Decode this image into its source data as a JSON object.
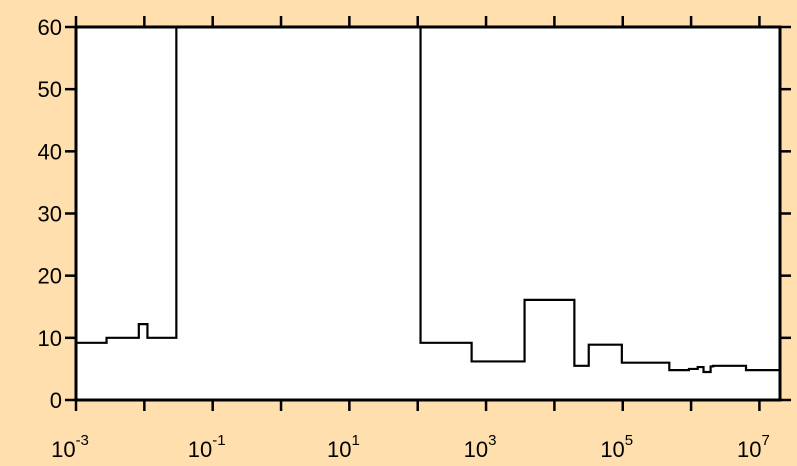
{
  "chart_data": {
    "type": "line",
    "title": "",
    "xlabel": "",
    "ylabel": "",
    "xscale": "log",
    "xlim": [
      0.001,
      20000000
    ],
    "ylim": [
      0,
      60
    ],
    "grid": false,
    "step": true,
    "x_ticks": [
      {
        "base": "10",
        "exp": "-3",
        "value": 0.001
      },
      {
        "base": "10",
        "exp": "-1",
        "value": 0.1
      },
      {
        "base": "10",
        "exp": "1",
        "value": 10
      },
      {
        "base": "10",
        "exp": "3",
        "value": 1000
      },
      {
        "base": "10",
        "exp": "5",
        "value": 100000
      },
      {
        "base": "10",
        "exp": "7",
        "value": 10000000
      }
    ],
    "y_ticks": [
      "0",
      "10",
      "20",
      "30",
      "40",
      "50",
      "60"
    ],
    "series": [
      {
        "color": "#000000",
        "x": [
          0.001,
          0.0028,
          0.0083,
          0.0111,
          0.0294,
          0.0294,
          110,
          615,
          3660,
          19600,
          31800,
          97000,
          480000,
          930000,
          1250000,
          1520000,
          1930000,
          2100000,
          6360000,
          20000000
        ],
        "y": [
          9.2,
          10.0,
          12.2,
          10.0,
          60,
          60,
          9.2,
          6.2,
          16.1,
          5.5,
          8.9,
          6.0,
          4.8,
          5.0,
          5.3,
          4.5,
          5.4,
          5.5,
          4.8,
          4.8
        ]
      }
    ]
  }
}
